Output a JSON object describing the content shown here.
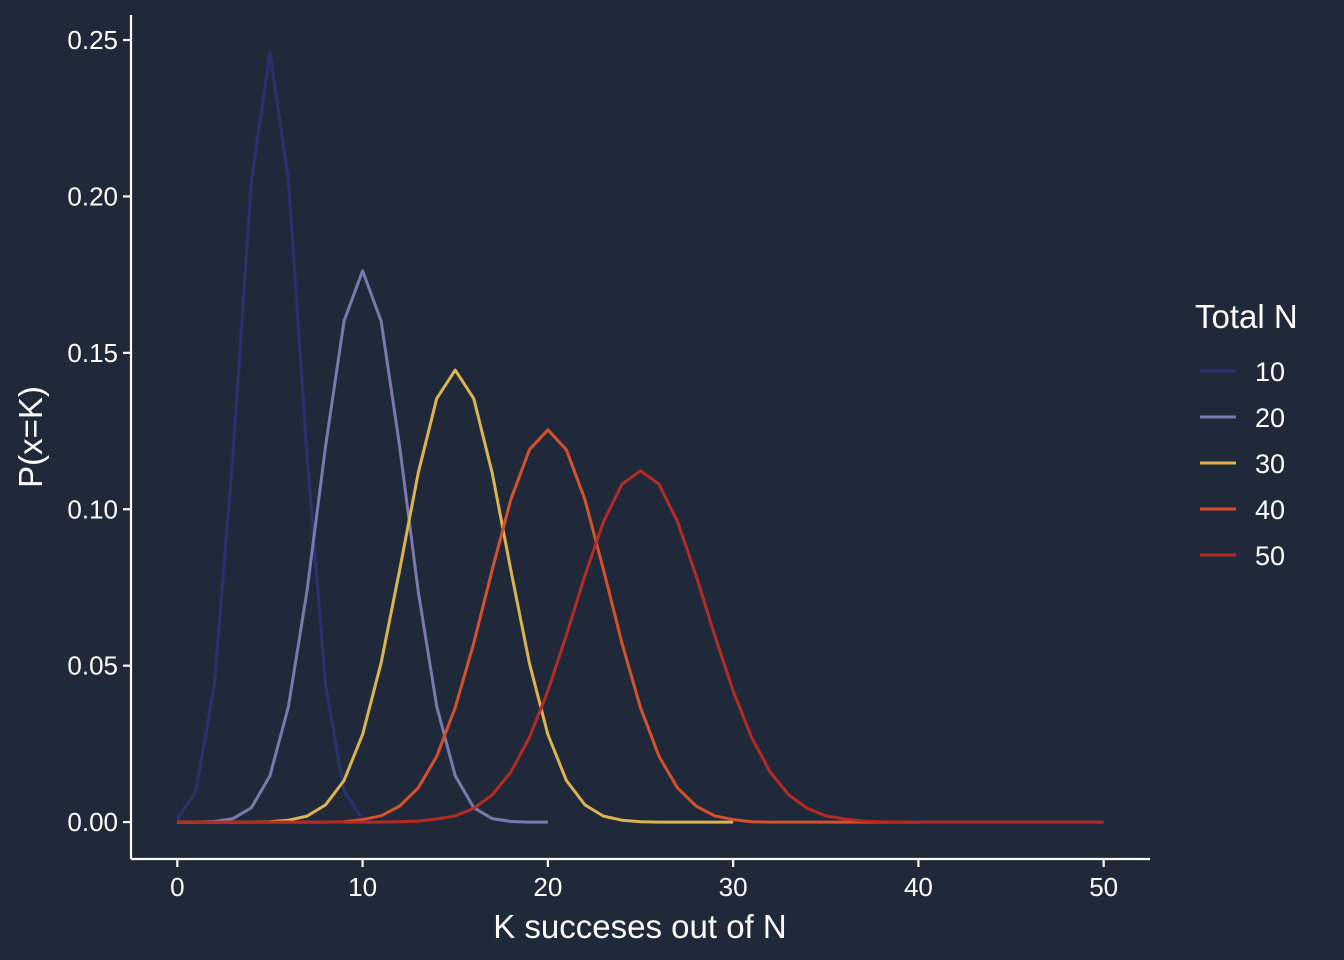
{
  "chart_data": {
    "type": "line",
    "title": "",
    "xlabel": "K succeses out of N",
    "ylabel": "P(x=K)",
    "xlim": [
      -2.5,
      52.5
    ],
    "ylim": [
      -0.0118,
      0.258
    ],
    "x_ticks": [
      0,
      10,
      20,
      30,
      40,
      50
    ],
    "x_tick_labels": [
      "0",
      "10",
      "20",
      "30",
      "40",
      "50"
    ],
    "y_ticks": [
      0,
      0.05,
      0.1,
      0.15,
      0.2,
      0.25
    ],
    "y_tick_labels": [
      "0.00",
      "0.05",
      "0.10",
      "0.15",
      "0.20",
      "0.25"
    ],
    "grid": false,
    "legend": {
      "title": "Total N",
      "position": "right"
    },
    "series": [
      {
        "name": "10",
        "color": "#2b3170",
        "x": [
          0,
          1,
          2,
          3,
          4,
          5,
          6,
          7,
          8,
          9,
          10
        ],
        "values": [
          0.001,
          0.0098,
          0.0439,
          0.1172,
          0.2051,
          0.2461,
          0.2051,
          0.1172,
          0.0439,
          0.0098,
          0.001
        ]
      },
      {
        "name": "20",
        "color": "#7a79ad",
        "x": [
          0,
          1,
          2,
          3,
          4,
          5,
          6,
          7,
          8,
          9,
          10,
          11,
          12,
          13,
          14,
          15,
          16,
          17,
          18,
          19,
          20
        ],
        "values": [
          0,
          0,
          0.0002,
          0.0011,
          0.0046,
          0.0148,
          0.037,
          0.0739,
          0.1201,
          0.1602,
          0.1762,
          0.1602,
          0.1201,
          0.0739,
          0.037,
          0.0148,
          0.0046,
          0.0011,
          0.0002,
          0,
          0
        ]
      },
      {
        "name": "30",
        "color": "#dbb44f",
        "x": [
          0,
          1,
          2,
          3,
          4,
          5,
          6,
          7,
          8,
          9,
          10,
          11,
          12,
          13,
          14,
          15,
          16,
          17,
          18,
          19,
          20,
          21,
          22,
          23,
          24,
          25,
          26,
          27,
          28,
          29,
          30
        ],
        "values": [
          0,
          0,
          0,
          0,
          0,
          0.0001,
          0.0006,
          0.0019,
          0.0055,
          0.0133,
          0.028,
          0.0509,
          0.0806,
          0.1115,
          0.1354,
          0.1445,
          0.1354,
          0.1115,
          0.0806,
          0.0509,
          0.028,
          0.0133,
          0.0055,
          0.0019,
          0.0006,
          0.0001,
          0,
          0,
          0,
          0,
          0
        ]
      },
      {
        "name": "40",
        "color": "#d4512c",
        "x": [
          0,
          1,
          2,
          3,
          4,
          5,
          6,
          7,
          8,
          9,
          10,
          11,
          12,
          13,
          14,
          15,
          16,
          17,
          18,
          19,
          20,
          21,
          22,
          23,
          24,
          25,
          26,
          27,
          28,
          29,
          30,
          31,
          32,
          33,
          34,
          35,
          36,
          37,
          38,
          39,
          40
        ],
        "values": [
          0,
          0,
          0,
          0,
          0,
          0,
          0,
          0,
          0,
          0.0001,
          0.0008,
          0.002,
          0.0051,
          0.0109,
          0.021,
          0.0366,
          0.0572,
          0.0807,
          0.1031,
          0.119,
          0.1254,
          0.119,
          0.1031,
          0.0807,
          0.0572,
          0.0366,
          0.021,
          0.0109,
          0.0051,
          0.002,
          0.0008,
          0.0001,
          0,
          0,
          0,
          0,
          0,
          0,
          0,
          0,
          0
        ]
      },
      {
        "name": "50",
        "color": "#b52a24",
        "x": [
          0,
          1,
          2,
          3,
          4,
          5,
          6,
          7,
          8,
          9,
          10,
          11,
          12,
          13,
          14,
          15,
          16,
          17,
          18,
          19,
          20,
          21,
          22,
          23,
          24,
          25,
          26,
          27,
          28,
          29,
          30,
          31,
          32,
          33,
          34,
          35,
          36,
          37,
          38,
          39,
          40,
          41,
          42,
          43,
          44,
          45,
          46,
          47,
          48,
          49,
          50
        ],
        "values": [
          0,
          0,
          0,
          0,
          0,
          0,
          0,
          0,
          0,
          0,
          0,
          0,
          0.0001,
          0.0003,
          0.001,
          0.002,
          0.0044,
          0.0087,
          0.016,
          0.027,
          0.0419,
          0.0598,
          0.0788,
          0.096,
          0.108,
          0.1123,
          0.108,
          0.096,
          0.0788,
          0.0598,
          0.0419,
          0.027,
          0.016,
          0.0087,
          0.0044,
          0.002,
          0.001,
          0.0003,
          0.0001,
          0,
          0,
          0,
          0,
          0,
          0,
          0,
          0,
          0,
          0,
          0,
          0
        ]
      }
    ]
  }
}
